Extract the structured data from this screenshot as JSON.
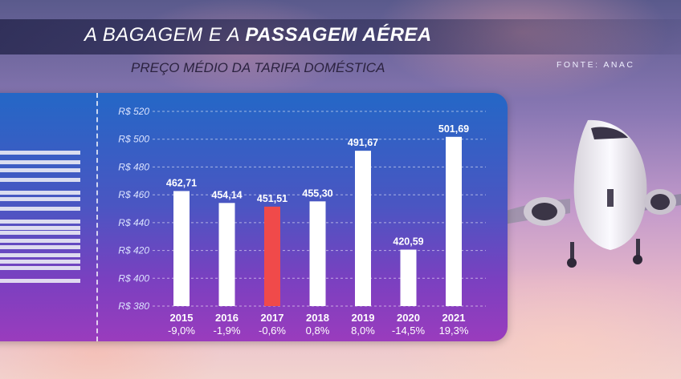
{
  "header": {
    "title_light": "A BAGAGEM E A ",
    "title_bold": "PASSAGEM AÉREA",
    "subtitle": "PREÇO MÉDIO DA TARIFA DOMÉSTICA",
    "source": "FONTE: ANAC"
  },
  "icons": {
    "plane": "airplane-icon",
    "barcode": "barcode-icon"
  },
  "colors": {
    "bar": "#ffffff",
    "highlight": "#f04a4a",
    "panel_top": "#2467c6",
    "panel_bottom": "#9a3cbd"
  },
  "chart_data": {
    "type": "bar",
    "categories": [
      "2015",
      "2016",
      "2017",
      "2018",
      "2019",
      "2020",
      "2021"
    ],
    "values": [
      462.71,
      454.14,
      451.51,
      455.3,
      491.67,
      420.59,
      501.69
    ],
    "value_labels": [
      "462,71",
      "454,14",
      "451,51",
      "455,30",
      "491,67",
      "420,59",
      "501,69"
    ],
    "change_labels": [
      "-9,0%",
      "-1,9%",
      "-0,6%",
      "0,8%",
      "8,0%",
      "-14,5%",
      "19,3%"
    ],
    "highlight_index": 2,
    "ylim": [
      380,
      520
    ],
    "yticks": [
      380,
      400,
      420,
      440,
      460,
      480,
      500,
      520
    ],
    "ytick_labels": [
      "R$ 380",
      "R$ 400",
      "R$ 420",
      "R$ 440",
      "R$ 460",
      "R$ 480",
      "R$ 500",
      "R$ 520"
    ],
    "grid": true,
    "legend": "none"
  }
}
